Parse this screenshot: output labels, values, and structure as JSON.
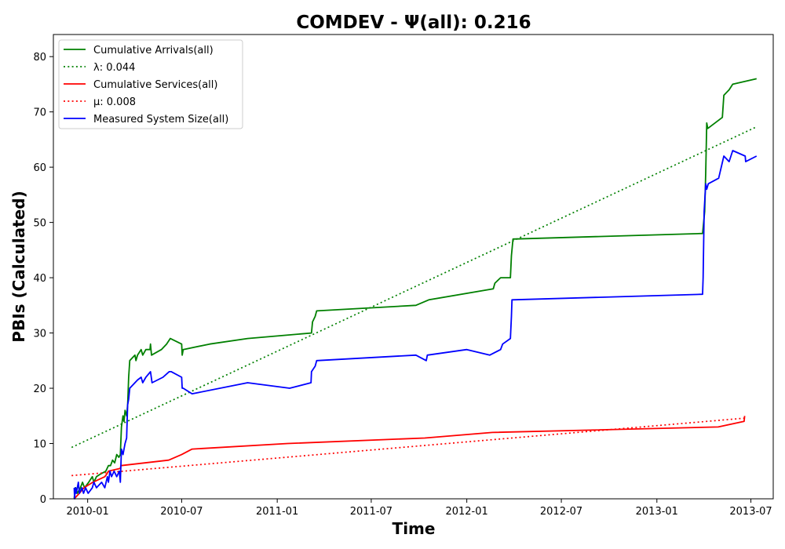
{
  "chart_data": {
    "type": "line",
    "title": "COMDEV -  Ψ(all): 0.216",
    "xlabel": "Time",
    "ylabel": "PBIs (Calculated)",
    "xlim": [
      "2009-10-27",
      "2013-08-13"
    ],
    "ylim": [
      0,
      84
    ],
    "grid": false,
    "legend_position": "upper-left",
    "x_ticks": [
      "2010-01",
      "2010-07",
      "2011-01",
      "2011-07",
      "2012-01",
      "2012-07",
      "2013-01",
      "2013-07"
    ],
    "y_ticks": [
      0,
      10,
      20,
      30,
      40,
      50,
      60,
      70,
      80
    ],
    "series": [
      {
        "name": "Cumulative Arrivals(all)",
        "color": "#008000",
        "style": "solid",
        "points": [
          [
            "2009-12-06",
            0
          ],
          [
            "2009-12-07",
            1
          ],
          [
            "2009-12-09",
            2
          ],
          [
            "2009-12-12",
            1
          ],
          [
            "2009-12-18",
            2
          ],
          [
            "2009-12-22",
            3
          ],
          [
            "2009-12-26",
            2
          ],
          [
            "2010-01-03",
            3
          ],
          [
            "2010-01-10",
            4
          ],
          [
            "2010-01-13",
            3
          ],
          [
            "2010-01-18",
            4
          ],
          [
            "2010-01-26",
            4.5
          ],
          [
            "2010-02-05",
            5
          ],
          [
            "2010-02-10",
            6
          ],
          [
            "2010-02-14",
            6
          ],
          [
            "2010-02-18",
            7
          ],
          [
            "2010-02-22",
            6.5
          ],
          [
            "2010-02-26",
            8
          ],
          [
            "2010-03-02",
            7.5
          ],
          [
            "2010-03-05",
            8
          ],
          [
            "2010-03-07",
            13
          ],
          [
            "2010-03-10",
            15
          ],
          [
            "2010-03-12",
            14
          ],
          [
            "2010-03-14",
            16
          ],
          [
            "2010-03-17",
            15
          ],
          [
            "2010-03-19",
            17
          ],
          [
            "2010-03-21",
            22
          ],
          [
            "2010-03-23",
            25
          ],
          [
            "2010-04-02",
            26
          ],
          [
            "2010-04-04",
            25
          ],
          [
            "2010-04-07",
            26
          ],
          [
            "2010-04-14",
            27
          ],
          [
            "2010-04-17",
            26
          ],
          [
            "2010-04-23",
            27
          ],
          [
            "2010-05-01",
            27
          ],
          [
            "2010-05-02",
            28
          ],
          [
            "2010-05-04",
            26
          ],
          [
            "2010-05-23",
            27
          ],
          [
            "2010-06-02",
            28
          ],
          [
            "2010-06-09",
            29
          ],
          [
            "2010-07-01",
            28
          ],
          [
            "2010-07-02",
            26
          ],
          [
            "2010-07-04",
            27
          ],
          [
            "2010-08-24",
            28
          ],
          [
            "2010-11-05",
            29
          ],
          [
            "2011-03-08",
            30
          ],
          [
            "2011-03-10",
            32
          ],
          [
            "2011-03-15",
            33
          ],
          [
            "2011-03-18",
            34
          ],
          [
            "2011-09-25",
            35
          ],
          [
            "2011-10-20",
            36
          ],
          [
            "2012-02-21",
            38
          ],
          [
            "2012-02-24",
            39
          ],
          [
            "2012-03-06",
            40
          ],
          [
            "2012-03-25",
            40
          ],
          [
            "2012-03-27",
            44
          ],
          [
            "2012-03-30",
            47
          ],
          [
            "2013-03-30",
            48
          ],
          [
            "2013-04-03",
            52
          ],
          [
            "2013-04-05",
            59
          ],
          [
            "2013-04-07",
            68
          ],
          [
            "2013-04-09",
            67
          ],
          [
            "2013-05-07",
            69
          ],
          [
            "2013-05-10",
            73
          ],
          [
            "2013-05-20",
            74
          ],
          [
            "2013-05-27",
            75
          ],
          [
            "2013-07-12",
            76
          ]
        ]
      },
      {
        "name": "λ: 0.044",
        "color": "#008000",
        "style": "dotted",
        "points": [
          [
            "2009-12-01",
            9.3
          ],
          [
            "2013-07-12",
            67.3
          ]
        ]
      },
      {
        "name": "Cumulative Services(all)",
        "color": "#ff0000",
        "style": "solid",
        "points": [
          [
            "2009-12-06",
            0
          ],
          [
            "2009-12-16",
            1
          ],
          [
            "2009-12-25",
            2
          ],
          [
            "2010-01-11",
            3
          ],
          [
            "2010-02-03",
            4
          ],
          [
            "2010-02-07",
            4.5
          ],
          [
            "2010-02-10",
            5
          ],
          [
            "2010-03-05",
            5.5
          ],
          [
            "2010-03-06",
            6
          ],
          [
            "2010-06-06",
            7
          ],
          [
            "2010-07-01",
            8
          ],
          [
            "2010-07-21",
            9
          ],
          [
            "2011-01-21",
            10
          ],
          [
            "2011-10-12",
            11
          ],
          [
            "2012-02-19",
            12
          ],
          [
            "2013-04-29",
            13
          ],
          [
            "2013-06-18",
            14
          ],
          [
            "2013-06-19",
            15
          ]
        ]
      },
      {
        "name": "μ: 0.008",
        "color": "#ff0000",
        "style": "dotted",
        "points": [
          [
            "2009-12-01",
            4.2
          ],
          [
            "2013-06-20",
            14.6
          ]
        ]
      },
      {
        "name": "Measured System Size(all)",
        "color": "#0000ff",
        "style": "solid",
        "points": [
          [
            "2009-12-06",
            2
          ],
          [
            "2009-12-07",
            0
          ],
          [
            "2009-12-08",
            2
          ],
          [
            "2009-12-10",
            1
          ],
          [
            "2009-12-14",
            3
          ],
          [
            "2009-12-16",
            1
          ],
          [
            "2009-12-21",
            2
          ],
          [
            "2009-12-24",
            1
          ],
          [
            "2009-12-28",
            2
          ],
          [
            "2010-01-02",
            1
          ],
          [
            "2010-01-10",
            2
          ],
          [
            "2010-01-13",
            3
          ],
          [
            "2010-01-18",
            2
          ],
          [
            "2010-01-28",
            3
          ],
          [
            "2010-02-03",
            2
          ],
          [
            "2010-02-08",
            4
          ],
          [
            "2010-02-10",
            3
          ],
          [
            "2010-02-13",
            5
          ],
          [
            "2010-02-16",
            4
          ],
          [
            "2010-02-21",
            5
          ],
          [
            "2010-02-26",
            4
          ],
          [
            "2010-03-03",
            5
          ],
          [
            "2010-03-05",
            3
          ],
          [
            "2010-03-07",
            9
          ],
          [
            "2010-03-10",
            8
          ],
          [
            "2010-03-14",
            10
          ],
          [
            "2010-03-17",
            11
          ],
          [
            "2010-03-19",
            17
          ],
          [
            "2010-03-21",
            18
          ],
          [
            "2010-03-23",
            20
          ],
          [
            "2010-04-02",
            21
          ],
          [
            "2010-04-07",
            21.5
          ],
          [
            "2010-04-14",
            22
          ],
          [
            "2010-04-17",
            21
          ],
          [
            "2010-04-23",
            22
          ],
          [
            "2010-05-02",
            23
          ],
          [
            "2010-05-05",
            21
          ],
          [
            "2010-05-26",
            22
          ],
          [
            "2010-06-07",
            23
          ],
          [
            "2010-06-11",
            23
          ],
          [
            "2010-07-01",
            22
          ],
          [
            "2010-07-02",
            20
          ],
          [
            "2010-07-04",
            20
          ],
          [
            "2010-07-21",
            19
          ],
          [
            "2010-11-05",
            21
          ],
          [
            "2011-01-25",
            20
          ],
          [
            "2011-03-07",
            21
          ],
          [
            "2011-03-08",
            23
          ],
          [
            "2011-03-15",
            24
          ],
          [
            "2011-03-18",
            25
          ],
          [
            "2011-09-25",
            26
          ],
          [
            "2011-10-15",
            25
          ],
          [
            "2011-10-17",
            26
          ],
          [
            "2012-01-01",
            27
          ],
          [
            "2012-02-14",
            26
          ],
          [
            "2012-03-06",
            27
          ],
          [
            "2012-03-10",
            28
          ],
          [
            "2012-03-25",
            29
          ],
          [
            "2012-03-27",
            33
          ],
          [
            "2012-03-28",
            36
          ],
          [
            "2013-03-30",
            37
          ],
          [
            "2013-03-31",
            40
          ],
          [
            "2013-04-02",
            52
          ],
          [
            "2013-04-05",
            57
          ],
          [
            "2013-04-07",
            56
          ],
          [
            "2013-04-10",
            57
          ],
          [
            "2013-04-30",
            58
          ],
          [
            "2013-05-10",
            62
          ],
          [
            "2013-05-20",
            61
          ],
          [
            "2013-05-27",
            63
          ],
          [
            "2013-06-20",
            62
          ],
          [
            "2013-06-21",
            61
          ],
          [
            "2013-07-12",
            62
          ]
        ]
      }
    ]
  }
}
